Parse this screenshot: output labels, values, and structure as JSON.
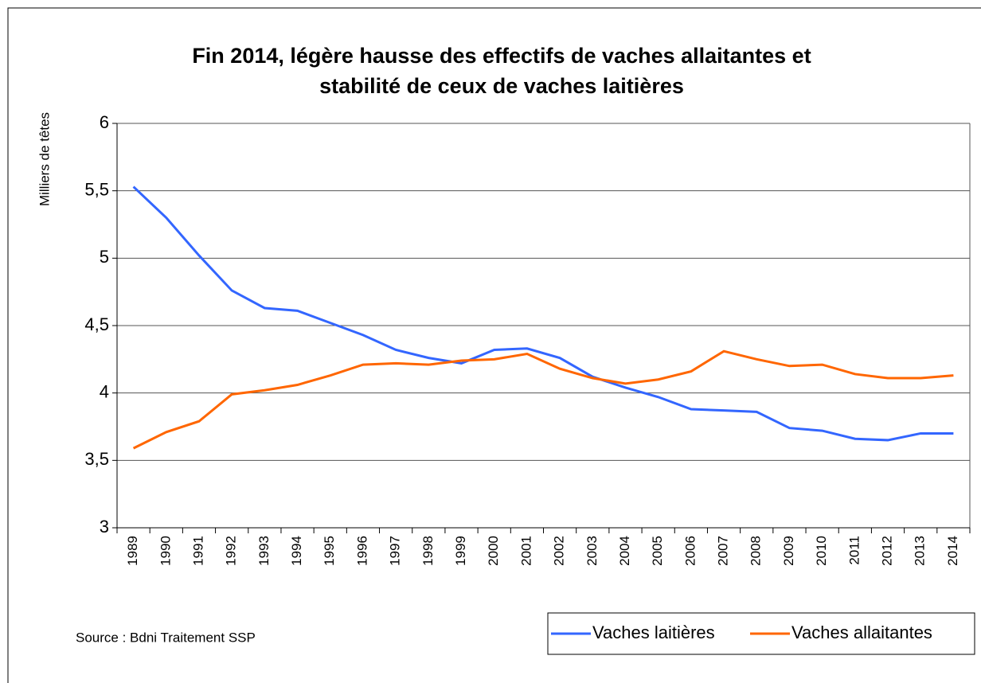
{
  "chart_data": {
    "type": "line",
    "title": [
      "Fin 2014, légère hausse des effectifs de vaches allaitantes et",
      "stabilité de ceux de vaches laitières"
    ],
    "y_label": "Milliers de têtes",
    "source": "Source :  Bdni Traitement SSP",
    "categories": [
      "1989",
      "1990",
      "1991",
      "1992",
      "1993",
      "1994",
      "1995",
      "1996",
      "1997",
      "1998",
      "1999",
      "2000",
      "2001",
      "2002",
      "2003",
      "2004",
      "2005",
      "2006",
      "2007",
      "2008",
      "2009",
      "2010",
      "2011",
      "2012",
      "2013",
      "2014"
    ],
    "series": [
      {
        "name": "Vaches laitières",
        "color": "#3366ff",
        "values": [
          5.53,
          5.3,
          5.02,
          4.76,
          4.63,
          4.61,
          4.52,
          4.43,
          4.32,
          4.26,
          4.22,
          4.32,
          4.33,
          4.26,
          4.12,
          4.04,
          3.97,
          3.88,
          3.87,
          3.86,
          3.74,
          3.72,
          3.66,
          3.65,
          3.7,
          3.7
        ]
      },
      {
        "name": "Vaches allaitantes",
        "color": "#ff6600",
        "values": [
          3.59,
          3.71,
          3.79,
          3.99,
          4.02,
          4.06,
          4.13,
          4.21,
          4.22,
          4.21,
          4.24,
          4.25,
          4.29,
          4.18,
          4.11,
          4.07,
          4.1,
          4.16,
          4.31,
          4.25,
          4.2,
          4.21,
          4.14,
          4.11,
          4.11,
          4.13
        ]
      }
    ],
    "ylim": [
      3,
      6
    ],
    "yticks": [
      3,
      {
        "value": 3.5,
        "label": "3,5"
      },
      4,
      {
        "value": 4.5,
        "label": "4,5"
      },
      5,
      {
        "value": 5.5,
        "label": "5,5"
      },
      6
    ],
    "grid": true,
    "legend": "bottom-right"
  }
}
